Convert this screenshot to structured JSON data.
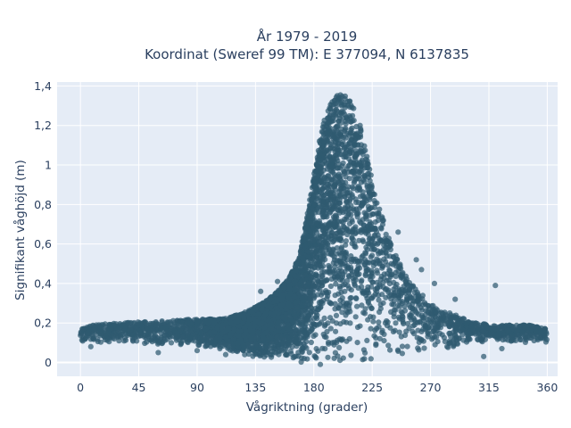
{
  "chart_data": {
    "type": "scatter",
    "title_line1": "År 1979 - 2019",
    "title_line2": "Koordinat (Sweref 99 TM): E 377094, N 6137835",
    "xlabel": "Vågriktning (grader)",
    "ylabel": "Signifikant våghöjd (m)",
    "xlim": [
      -18,
      368
    ],
    "ylim": [
      -0.07,
      1.42
    ],
    "xticks": [
      0,
      45,
      90,
      135,
      180,
      225,
      270,
      315,
      360
    ],
    "xtick_labels": [
      "0",
      "45",
      "90",
      "135",
      "180",
      "225",
      "270",
      "315",
      "360"
    ],
    "yticks": [
      0,
      0.2,
      0.4,
      0.6,
      0.8,
      1,
      1.2,
      1.4
    ],
    "ytick_labels": [
      "0",
      "0,2",
      "0,4",
      "0,6",
      "0,8",
      "1",
      "1,2",
      "1,4"
    ],
    "grid": true,
    "marker_color": "#2f5a70",
    "plot_bg": "#e5ecf6",
    "envelope": {
      "x": [
        0,
        10,
        30,
        60,
        90,
        110,
        125,
        135,
        145,
        152,
        160,
        165,
        170,
        175,
        180,
        185,
        190,
        195,
        200,
        205,
        210,
        215,
        220,
        225,
        230,
        235,
        240,
        245,
        250,
        255,
        260,
        265,
        270,
        280,
        290,
        300,
        315,
        330,
        345,
        360
      ],
      "y_max": [
        0.17,
        0.19,
        0.2,
        0.21,
        0.22,
        0.22,
        0.25,
        0.28,
        0.32,
        0.36,
        0.42,
        0.48,
        0.58,
        0.75,
        0.95,
        1.15,
        1.28,
        1.34,
        1.36,
        1.35,
        1.31,
        1.22,
        1.08,
        0.92,
        0.8,
        0.7,
        0.6,
        0.52,
        0.45,
        0.42,
        0.38,
        0.33,
        0.3,
        0.26,
        0.24,
        0.21,
        0.19,
        0.19,
        0.19,
        0.17
      ],
      "y_min": [
        0.1,
        0.1,
        0.1,
        0.08,
        0.08,
        0.06,
        0.04,
        0.02,
        0.02,
        0.02,
        0.01,
        0.01,
        0.0,
        0.0,
        0.0,
        0.0,
        0.0,
        0.0,
        0.0,
        0.0,
        0.0,
        0.0,
        0.0,
        0.0,
        0.0,
        0.0,
        0.0,
        0.01,
        0.01,
        0.02,
        0.02,
        0.03,
        0.05,
        0.07,
        0.08,
        0.1,
        0.1,
        0.1,
        0.1,
        0.1
      ]
    },
    "outliers": [
      {
        "x": 320,
        "y": 0.39
      },
      {
        "x": 152,
        "y": 0.41
      },
      {
        "x": 139,
        "y": 0.36
      },
      {
        "x": 259,
        "y": 0.52
      },
      {
        "x": 263,
        "y": 0.47
      },
      {
        "x": 273,
        "y": 0.4
      },
      {
        "x": 289,
        "y": 0.32
      },
      {
        "x": 245,
        "y": 0.66
      },
      {
        "x": 60,
        "y": 0.05
      },
      {
        "x": 90,
        "y": 0.06
      },
      {
        "x": 112,
        "y": 0.04
      },
      {
        "x": 130,
        "y": 0.06
      },
      {
        "x": 311,
        "y": 0.03
      },
      {
        "x": 325,
        "y": 0.07
      },
      {
        "x": 8,
        "y": 0.08
      },
      {
        "x": 185,
        "y": -0.01
      }
    ]
  }
}
